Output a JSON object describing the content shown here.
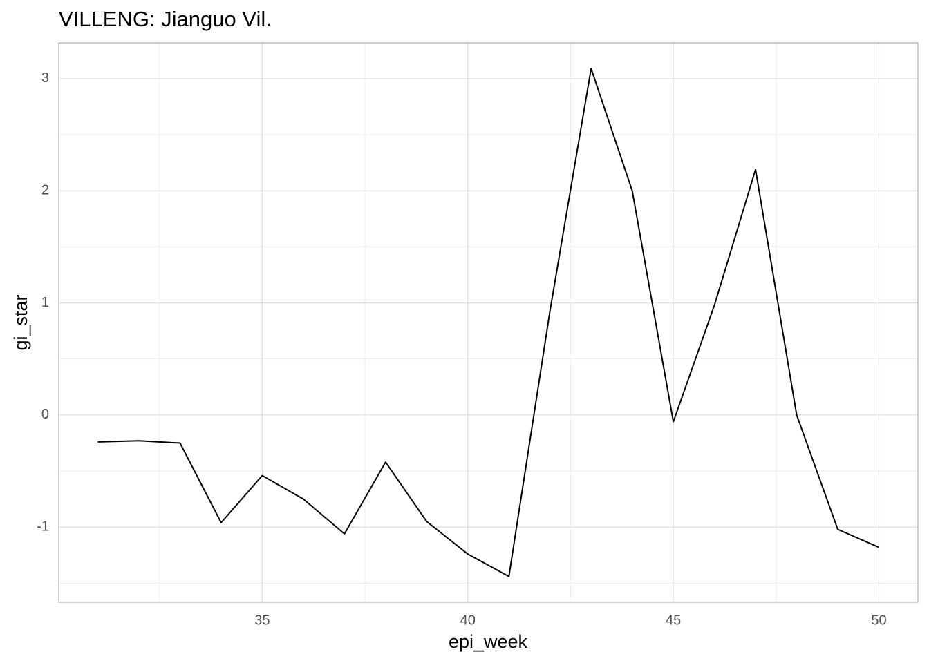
{
  "chart_data": {
    "type": "line",
    "title": "VILLENG: Jianguo Vil.",
    "x_label": "epi_week",
    "y_label": "gi_star",
    "x": [
      31,
      32,
      33,
      34,
      35,
      36,
      37,
      38,
      39,
      40,
      41,
      42,
      43,
      44,
      45,
      46,
      47,
      48,
      49,
      50
    ],
    "series": [
      {
        "color": "#000000",
        "values": [
          -0.24,
          -0.23,
          -0.25,
          -0.96,
          -0.54,
          -0.75,
          -1.06,
          -0.42,
          -0.95,
          -1.24,
          -1.44,
          0.93,
          3.09,
          2.0,
          -0.06,
          0.98,
          2.19,
          0.0,
          -1.02,
          -1.18
        ]
      }
    ],
    "xlim": [
      30.05,
      50.95
    ],
    "xticks": [
      35,
      40,
      45,
      50
    ],
    "ylim": [
      -1.67,
      3.32
    ],
    "yticks": [
      -1,
      0,
      1,
      2,
      3
    ],
    "grid": true
  }
}
